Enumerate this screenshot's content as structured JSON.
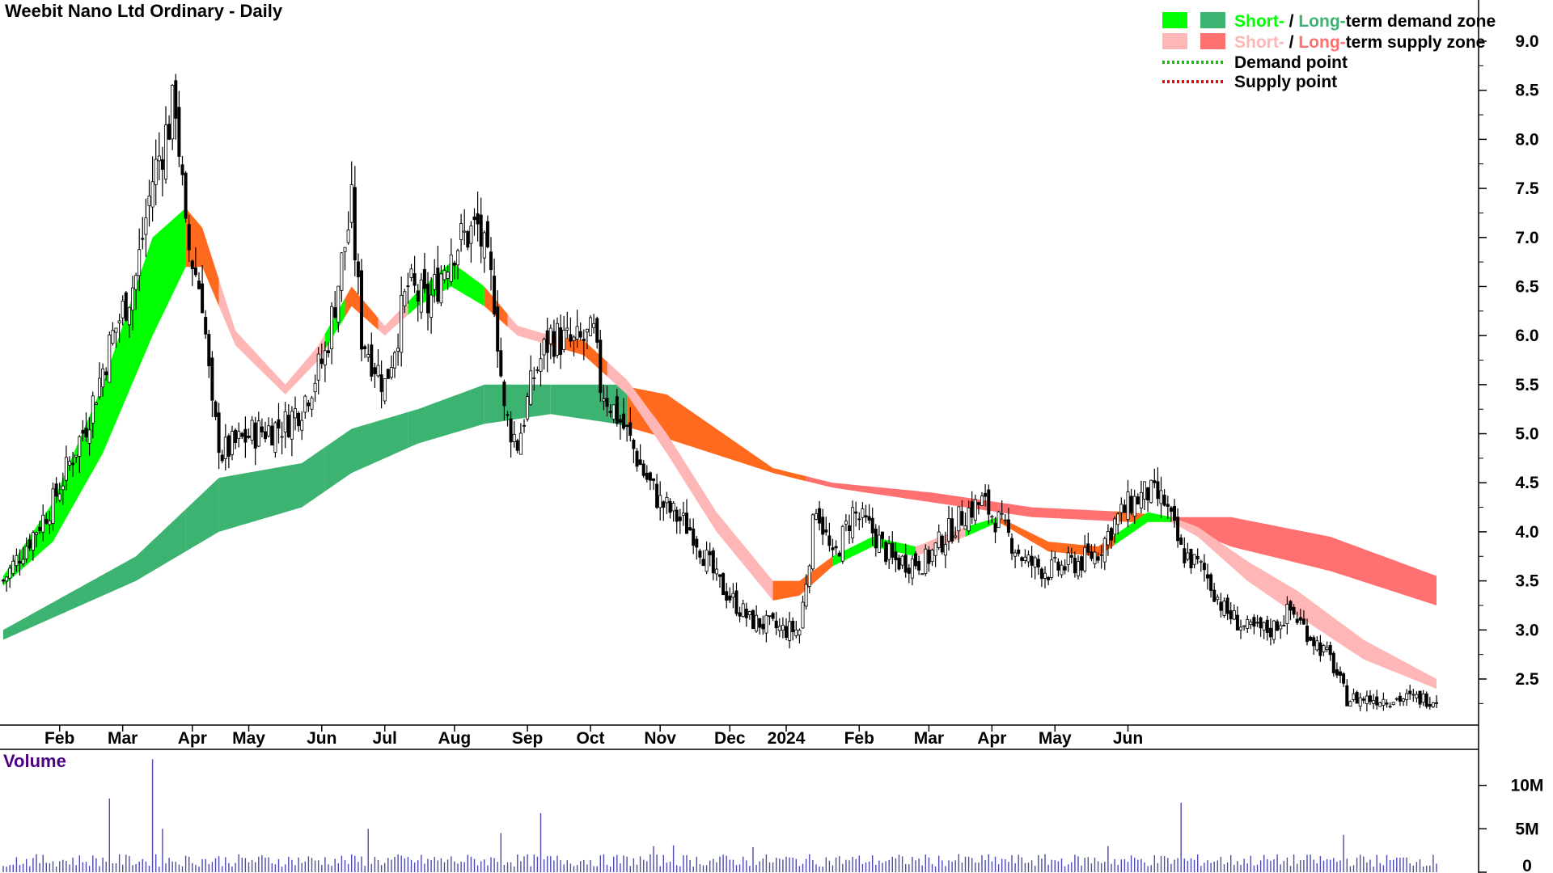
{
  "title": "Weebit Nano Ltd Ordinary - Daily",
  "volume_label": "Volume",
  "colors": {
    "short_demand": "#00ff00",
    "long_demand": "#3cb371",
    "short_supply": "#ffb6b6",
    "long_supply": "#ff7070",
    "transition_zone": "#ff6a1f",
    "candle": "#000000",
    "volume_bar": "#4b4bb0",
    "volume_label": "#4b0082"
  },
  "legend": {
    "demand_zone": {
      "short": "Short-",
      "sep": " / ",
      "long": "Long-",
      "rest": "term demand zone"
    },
    "supply_zone": {
      "short": "Short-",
      "sep": " / ",
      "long": "Long-",
      "rest": "term supply zone"
    },
    "demand_point": "Demand point",
    "supply_point": "Supply point"
  },
  "chart_data": [
    {
      "type": "candlestick",
      "title": "Weebit Nano Ltd Ordinary - Daily",
      "x_tick_labels": [
        "Feb",
        "Mar",
        "Apr",
        "May",
        "Jun",
        "Jul",
        "Aug",
        "Sep",
        "Oct",
        "Nov",
        "Dec",
        "2024",
        "Feb",
        "Mar",
        "Apr",
        "May",
        "Jun"
      ],
      "y_tick_labels": [
        "9.0",
        "8.5",
        "8.0",
        "7.5",
        "7.0",
        "6.5",
        "6.0",
        "5.5",
        "5.0",
        "4.5",
        "4.0",
        "3.5",
        "3.0",
        "2.5"
      ],
      "ylim": [
        2.1,
        9.3
      ],
      "approx_close_path": [
        [
          0,
          3.5
        ],
        [
          15,
          4.3
        ],
        [
          25,
          5.1
        ],
        [
          33,
          6.0
        ],
        [
          40,
          6.6
        ],
        [
          45,
          7.6
        ],
        [
          52,
          8.4
        ],
        [
          55,
          7.0
        ],
        [
          60,
          6.4
        ],
        [
          63,
          5.2
        ],
        [
          66,
          4.8
        ],
        [
          75,
          5.0
        ],
        [
          85,
          5.1
        ],
        [
          90,
          5.3
        ],
        [
          97,
          5.8
        ],
        [
          105,
          7.3
        ],
        [
          108,
          6.0
        ],
        [
          115,
          5.5
        ],
        [
          122,
          6.5
        ],
        [
          128,
          6.3
        ],
        [
          135,
          6.9
        ],
        [
          143,
          7.1
        ],
        [
          148,
          6.4
        ],
        [
          151,
          5.2
        ],
        [
          155,
          4.9
        ],
        [
          160,
          5.6
        ],
        [
          165,
          6.0
        ],
        [
          172,
          5.9
        ],
        [
          178,
          6.0
        ],
        [
          180,
          5.5
        ],
        [
          188,
          5.0
        ],
        [
          193,
          4.6
        ],
        [
          198,
          4.3
        ],
        [
          208,
          4.0
        ],
        [
          215,
          3.5
        ],
        [
          225,
          3.1
        ],
        [
          235,
          3.0
        ],
        [
          240,
          3.0
        ],
        [
          245,
          4.3
        ],
        [
          250,
          3.7
        ],
        [
          256,
          4.2
        ],
        [
          262,
          4.0
        ],
        [
          268,
          3.7
        ],
        [
          278,
          3.7
        ],
        [
          285,
          4.0
        ],
        [
          290,
          4.2
        ],
        [
          295,
          4.3
        ],
        [
          300,
          4.1
        ],
        [
          308,
          3.7
        ],
        [
          315,
          3.6
        ],
        [
          325,
          3.7
        ],
        [
          330,
          3.8
        ],
        [
          335,
          4.1
        ],
        [
          340,
          4.3
        ],
        [
          345,
          4.4
        ],
        [
          350,
          4.3
        ],
        [
          355,
          3.8
        ],
        [
          362,
          3.6
        ],
        [
          368,
          3.2
        ],
        [
          375,
          3.0
        ],
        [
          382,
          3.0
        ],
        [
          388,
          3.2
        ],
        [
          395,
          2.9
        ],
        [
          400,
          2.7
        ],
        [
          405,
          2.3
        ],
        [
          410,
          2.3
        ],
        [
          418,
          2.3
        ],
        [
          425,
          2.3
        ],
        [
          432,
          2.3
        ]
      ],
      "short_term_zone_path": [
        [
          0,
          3.45,
          3.55
        ],
        [
          15,
          3.9,
          4.3
        ],
        [
          30,
          4.8,
          5.5
        ],
        [
          45,
          6.0,
          7.0
        ],
        [
          55,
          6.7,
          7.3
        ],
        [
          60,
          6.7,
          7.1
        ],
        [
          70,
          5.9,
          6.05
        ],
        [
          85,
          5.4,
          5.5
        ],
        [
          95,
          5.75,
          5.9
        ],
        [
          105,
          6.3,
          6.5
        ],
        [
          115,
          6.0,
          6.1
        ],
        [
          125,
          6.3,
          6.45
        ],
        [
          135,
          6.5,
          6.75
        ],
        [
          145,
          6.3,
          6.5
        ],
        [
          155,
          6.0,
          6.1
        ],
        [
          165,
          5.9,
          6.0
        ],
        [
          175,
          5.8,
          5.95
        ],
        [
          188,
          5.4,
          5.55
        ],
        [
          200,
          4.8,
          5.0
        ],
        [
          215,
          4.0,
          4.2
        ],
        [
          232,
          3.3,
          3.5
        ],
        [
          240,
          3.35,
          3.5
        ],
        [
          250,
          3.65,
          3.75
        ],
        [
          262,
          3.85,
          3.95
        ],
        [
          275,
          3.75,
          3.85
        ],
        [
          290,
          3.95,
          4.05
        ],
        [
          300,
          4.1,
          4.15
        ],
        [
          315,
          3.8,
          3.9
        ],
        [
          330,
          3.75,
          3.85
        ],
        [
          345,
          4.1,
          4.2
        ],
        [
          352,
          4.1,
          4.15
        ],
        [
          360,
          3.95,
          4.05
        ],
        [
          375,
          3.5,
          3.7
        ],
        [
          390,
          3.15,
          3.4
        ],
        [
          410,
          2.7,
          2.9
        ],
        [
          432,
          2.4,
          2.5
        ]
      ],
      "long_term_zone_path": [
        [
          0,
          2.9,
          3.0
        ],
        [
          40,
          3.5,
          3.75
        ],
        [
          65,
          4.0,
          4.55
        ],
        [
          90,
          4.25,
          4.7
        ],
        [
          105,
          4.6,
          5.05
        ],
        [
          125,
          4.9,
          5.25
        ],
        [
          145,
          5.1,
          5.5
        ],
        [
          165,
          5.2,
          5.5
        ],
        [
          185,
          5.1,
          5.5
        ],
        [
          200,
          4.95,
          5.4
        ],
        [
          232,
          4.6,
          4.65
        ],
        [
          250,
          4.45,
          4.5
        ],
        [
          280,
          4.3,
          4.4
        ],
        [
          310,
          4.15,
          4.25
        ],
        [
          340,
          4.1,
          4.2
        ],
        [
          352,
          4.1,
          4.15
        ],
        [
          370,
          3.85,
          4.15
        ],
        [
          400,
          3.6,
          3.95
        ],
        [
          432,
          3.25,
          3.55
        ]
      ],
      "zone_state_spans": [
        {
          "from": 0,
          "to": 55,
          "short": "demand",
          "long": "demand"
        },
        {
          "from": 55,
          "to": 65,
          "short": "transition",
          "long": "demand"
        },
        {
          "from": 65,
          "to": 97,
          "short": "supply",
          "long": "demand"
        },
        {
          "from": 97,
          "to": 103,
          "short": "demand",
          "long": "demand"
        },
        {
          "from": 103,
          "to": 113,
          "short": "transition",
          "long": "demand"
        },
        {
          "from": 113,
          "to": 122,
          "short": "supply",
          "long": "demand"
        },
        {
          "from": 122,
          "to": 145,
          "short": "demand",
          "long": "demand"
        },
        {
          "from": 145,
          "to": 152,
          "short": "transition",
          "long": "demand"
        },
        {
          "from": 152,
          "to": 165,
          "short": "supply",
          "long": "demand"
        },
        {
          "from": 165,
          "to": 182,
          "short": "transition",
          "long": "demand"
        },
        {
          "from": 182,
          "to": 188,
          "short": "supply",
          "long": "demand"
        },
        {
          "from": 188,
          "to": 232,
          "short": "supply",
          "long": "transition"
        },
        {
          "from": 232,
          "to": 242,
          "short": "transition",
          "long": "transition"
        },
        {
          "from": 242,
          "to": 250,
          "short": "transition",
          "long": "supply"
        },
        {
          "from": 250,
          "to": 275,
          "short": "demand",
          "long": "supply"
        },
        {
          "from": 275,
          "to": 290,
          "short": "supply",
          "long": "supply"
        },
        {
          "from": 290,
          "to": 300,
          "short": "demand",
          "long": "supply"
        },
        {
          "from": 300,
          "to": 318,
          "short": "transition",
          "long": "supply"
        },
        {
          "from": 318,
          "to": 335,
          "short": "transition",
          "long": "supply"
        },
        {
          "from": 335,
          "to": 352,
          "short": "demand",
          "long": "transition"
        },
        {
          "from": 352,
          "to": 432,
          "short": "supply",
          "long": "supply"
        }
      ],
      "x_tick_positions_days": [
        17,
        36,
        57,
        74,
        96,
        115,
        136,
        158,
        177,
        198,
        219,
        236,
        258,
        279,
        298,
        317,
        339
      ]
    },
    {
      "type": "bar",
      "title": "Volume",
      "y_tick_labels": [
        "10M",
        "5M",
        "0"
      ],
      "ylim": [
        0,
        13.5
      ],
      "unit": "M",
      "volume_spikes": [
        [
          32,
          8.5
        ],
        [
          45,
          13
        ],
        [
          48,
          5
        ],
        [
          110,
          5
        ],
        [
          162,
          6.8
        ],
        [
          150,
          4.5
        ],
        [
          355,
          8
        ],
        [
          404,
          4.3
        ],
        [
          333,
          3
        ],
        [
          226,
          2.9
        ],
        [
          202,
          3.1
        ],
        [
          196,
          3
        ]
      ],
      "baseline_volume": 1.6
    }
  ]
}
